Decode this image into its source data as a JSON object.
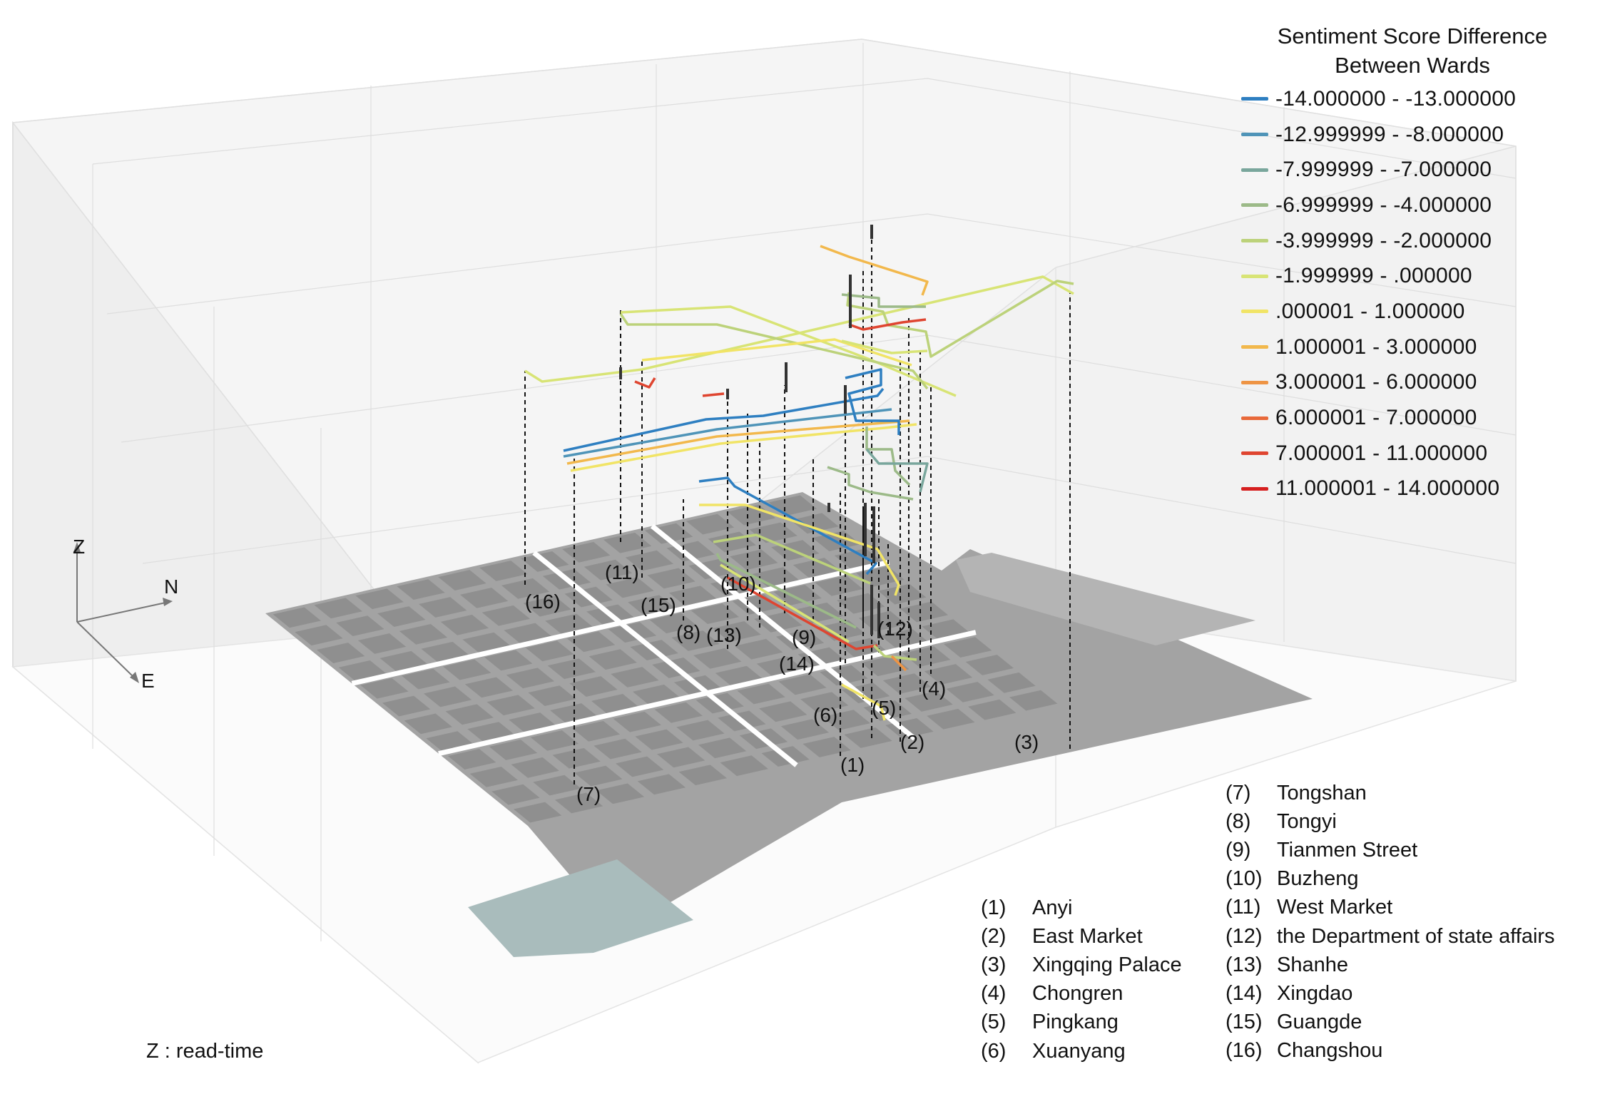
{
  "legend": {
    "title_line1": "Sentiment Score Difference",
    "title_line2": "Between Wards",
    "items": [
      {
        "label": "-14.000000 - -13.000000",
        "color": "#2e7fc1"
      },
      {
        "label": "-12.999999 - -8.000000",
        "color": "#4f94b8"
      },
      {
        "label": "-7.999999 - -7.000000",
        "color": "#79a69c"
      },
      {
        "label": "-6.999999 - -4.000000",
        "color": "#9cba88"
      },
      {
        "label": "-3.999999 - -2.000000",
        "color": "#bcd27a"
      },
      {
        "label": "-1.999999 - .000000",
        "color": "#d8e475"
      },
      {
        "label": ".000001 - 1.000000",
        "color": "#f1e466"
      },
      {
        "label": "1.000001 - 3.000000",
        "color": "#f2b84c"
      },
      {
        "label": "3.000001 - 6.000000",
        "color": "#ee9444"
      },
      {
        "label": "6.000001 - 7.000000",
        "color": "#e8693a"
      },
      {
        "label": "7.000001 - 11.000000",
        "color": "#df4530"
      },
      {
        "label": "11.000001 - 14.000000",
        "color": "#d61f1f"
      }
    ]
  },
  "axes": {
    "z": "Z",
    "n": "N",
    "e": "E"
  },
  "z_caption": "Z : read-time",
  "markers": [
    "(1)",
    "(2)",
    "(3)",
    "(4)",
    "(5)",
    "(6)",
    "(7)",
    "(8)",
    "(9)",
    "(10)",
    "(11)",
    "(12)",
    "(13)",
    "(14)",
    "(15)",
    "(16)"
  ],
  "wards_left": [
    {
      "num": "(1)",
      "name": "Anyi"
    },
    {
      "num": "(2)",
      "name": "East Market"
    },
    {
      "num": "(3)",
      "name": "Xingqing Palace"
    },
    {
      "num": "(4)",
      "name": "Chongren"
    },
    {
      "num": "(5)",
      "name": "Pingkang"
    },
    {
      "num": "(6)",
      "name": "Xuanyang"
    }
  ],
  "wards_right": [
    {
      "num": "(7)",
      "name": "Tongshan"
    },
    {
      "num": "(8)",
      "name": "Tongyi"
    },
    {
      "num": "(9)",
      "name": "Tianmen Street"
    },
    {
      "num": "(10)",
      "name": "Buzheng"
    },
    {
      "num": "(11)",
      "name": "West Market"
    },
    {
      "num": "(12)",
      "name": "the Department of state affairs"
    },
    {
      "num": "(13)",
      "name": "Shanhe"
    },
    {
      "num": "(14)",
      "name": "Xingdao"
    },
    {
      "num": "(15)",
      "name": "Guangde"
    },
    {
      "num": "(16)",
      "name": "Changshou"
    }
  ]
}
